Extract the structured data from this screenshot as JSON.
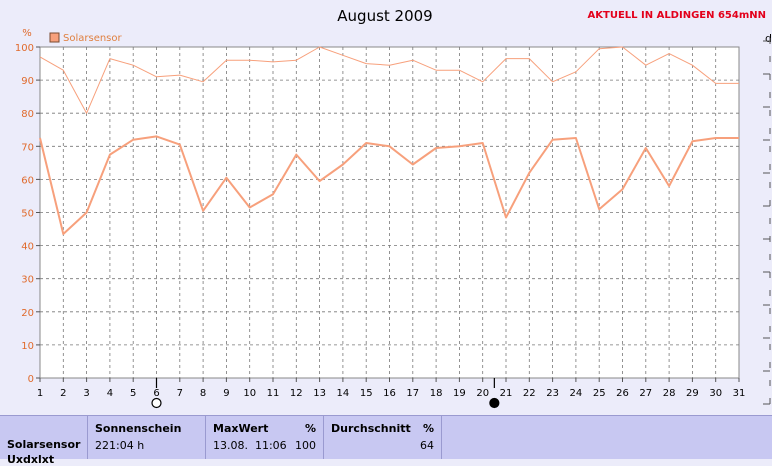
{
  "chart_data": {
    "type": "line",
    "title": "August 2009",
    "station_label": "AKTUELL IN ALDINGEN 654mNN",
    "ylabel": "%",
    "right_axis_label": "d",
    "ylim": [
      0,
      100
    ],
    "yticks": [
      "0",
      "10",
      "20",
      "30",
      "40",
      "50",
      "60",
      "70",
      "80",
      "90",
      "100"
    ],
    "x": [
      "1",
      "2",
      "3",
      "4",
      "5",
      "6",
      "7",
      "8",
      "9",
      "10",
      "11",
      "12",
      "13",
      "14",
      "15",
      "16",
      "17",
      "18",
      "19",
      "20",
      "21",
      "22",
      "23",
      "24",
      "25",
      "26",
      "27",
      "28",
      "29",
      "30",
      "31"
    ],
    "legend": "top-left",
    "legend_label": "Solarsensor",
    "grid": true,
    "series": [
      {
        "name": "Solarsensor",
        "color": "#f7a07c",
        "values": [
          72.5,
          43.5,
          50,
          67.5,
          72,
          73,
          70.5,
          50.5,
          60.5,
          51.5,
          55.5,
          67.5,
          59.5,
          64.5,
          71,
          70,
          64.5,
          69.5,
          70,
          71,
          48.5,
          62,
          72,
          72.5,
          51,
          57,
          69.5,
          58,
          71.5,
          72.5,
          72.5
        ]
      },
      {
        "color": "#f7a07c",
        "values": [
          97,
          93,
          80,
          96.5,
          94.5,
          91,
          91.5,
          89.5,
          96,
          96,
          95.5,
          96,
          100,
          97.5,
          95,
          94.5,
          96,
          93,
          93,
          89.5,
          96.5,
          96.5,
          89.5,
          92.5,
          99.5,
          100,
          94.5,
          98,
          94.5,
          89,
          89
        ]
      }
    ],
    "moon_markers": [
      {
        "day": 6,
        "phase": "full-moon-icon"
      },
      {
        "day": 20.5,
        "phase": "new-moon-icon"
      }
    ]
  },
  "stats": {
    "row_label": "Solarsensor",
    "row_label_2": "Uxdxlxt",
    "sonnenschein": {
      "header": "Sonnenschein",
      "value": "221:04 h"
    },
    "maxwert": {
      "header": "MaxWert",
      "unit": "%",
      "date": "13.08.  11:06",
      "value": "100"
    },
    "durchschnitt": {
      "header": "Durchschnitt",
      "unit": "%",
      "value": "64"
    }
  }
}
